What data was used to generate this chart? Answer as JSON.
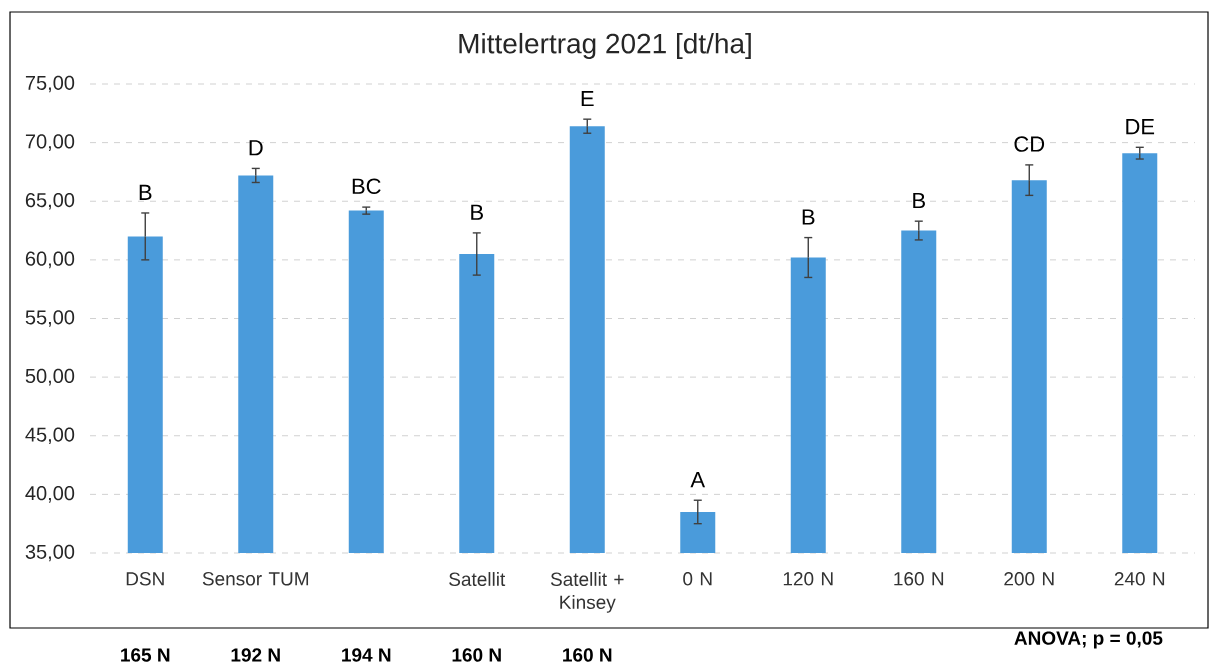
{
  "chart_data": {
    "type": "bar",
    "title": "Mittelertrag 2021 [dt/ha]",
    "categories": [
      "DSN",
      "Sensor TUM",
      null,
      "Satellit",
      "Satellit + Kinsey",
      "0 N",
      "120 N",
      "160 N",
      "200 N",
      "240 N"
    ],
    "values": [
      62.0,
      67.2,
      64.2,
      60.5,
      71.4,
      38.5,
      60.2,
      62.5,
      66.8,
      69.1
    ],
    "errors": [
      2.0,
      0.6,
      0.3,
      1.8,
      0.6,
      1.0,
      1.7,
      0.8,
      1.3,
      0.5
    ],
    "color": "#4a9bdb",
    "ylim": [
      35,
      75
    ],
    "yticks": [
      {
        "value": 35,
        "label": "35,00"
      },
      {
        "value": 40,
        "label": "40,00"
      },
      {
        "value": 45,
        "label": "45,00"
      },
      {
        "value": 50,
        "label": "50,00"
      },
      {
        "value": 55,
        "label": "55,00"
      },
      {
        "value": 60,
        "label": "60,00"
      },
      {
        "value": 65,
        "label": "65,00"
      },
      {
        "value": 70,
        "label": "70,00"
      },
      {
        "value": 75,
        "label": "75,00"
      }
    ],
    "grid": "y",
    "annotations": [
      "B",
      "D",
      "BC",
      "B",
      "E",
      "A",
      "B",
      "B",
      "CD",
      "DE",
      "165 N",
      "192 N",
      "194 N",
      "160 N",
      "160 N",
      "ANOVA; p = 0,05"
    ]
  }
}
